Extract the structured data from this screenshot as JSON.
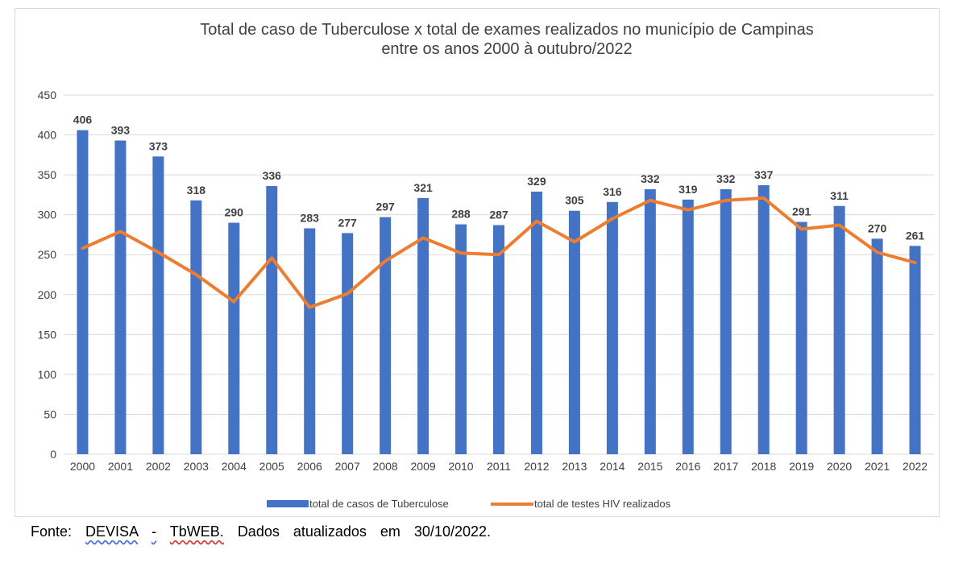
{
  "chart_data": {
    "type": "bar",
    "title_lines": [
      "Total de caso de Tuberculose x total de exames realizados no município de Campinas",
      "entre os anos 2000 à outubro/2022"
    ],
    "categories": [
      "2000",
      "2001",
      "2002",
      "2003",
      "2004",
      "2005",
      "2006",
      "2007",
      "2008",
      "2009",
      "2010",
      "2011",
      "2012",
      "2013",
      "2014",
      "2015",
      "2016",
      "2017",
      "2018",
      "2019",
      "2020",
      "2021",
      "2022"
    ],
    "series": [
      {
        "name": "total de casos de Tuberculose",
        "type": "bar",
        "color": "#4472c4",
        "values": [
          406,
          393,
          373,
          318,
          290,
          336,
          283,
          277,
          297,
          321,
          288,
          287,
          329,
          305,
          316,
          332,
          319,
          332,
          337,
          291,
          311,
          270,
          261
        ]
      },
      {
        "name": "total de testes HIV realizados",
        "type": "line",
        "color": "#ed7d31",
        "values": [
          258,
          279,
          253,
          225,
          191,
          246,
          184,
          201,
          242,
          271,
          252,
          250,
          292,
          266,
          295,
          318,
          306,
          318,
          321,
          282,
          287,
          253,
          240
        ]
      }
    ],
    "ylim": [
      0,
      450
    ],
    "yticks": [
      0,
      50,
      100,
      150,
      200,
      250,
      300,
      350,
      400,
      450
    ],
    "grid": true,
    "legend_position": "bottom"
  },
  "footer": {
    "fonte_label": "Fonte:",
    "devisa": "DEVISA",
    "dash": "-",
    "tbweb": "TbWEB.",
    "rest": "Dados atualizados em 30/10/2022."
  }
}
